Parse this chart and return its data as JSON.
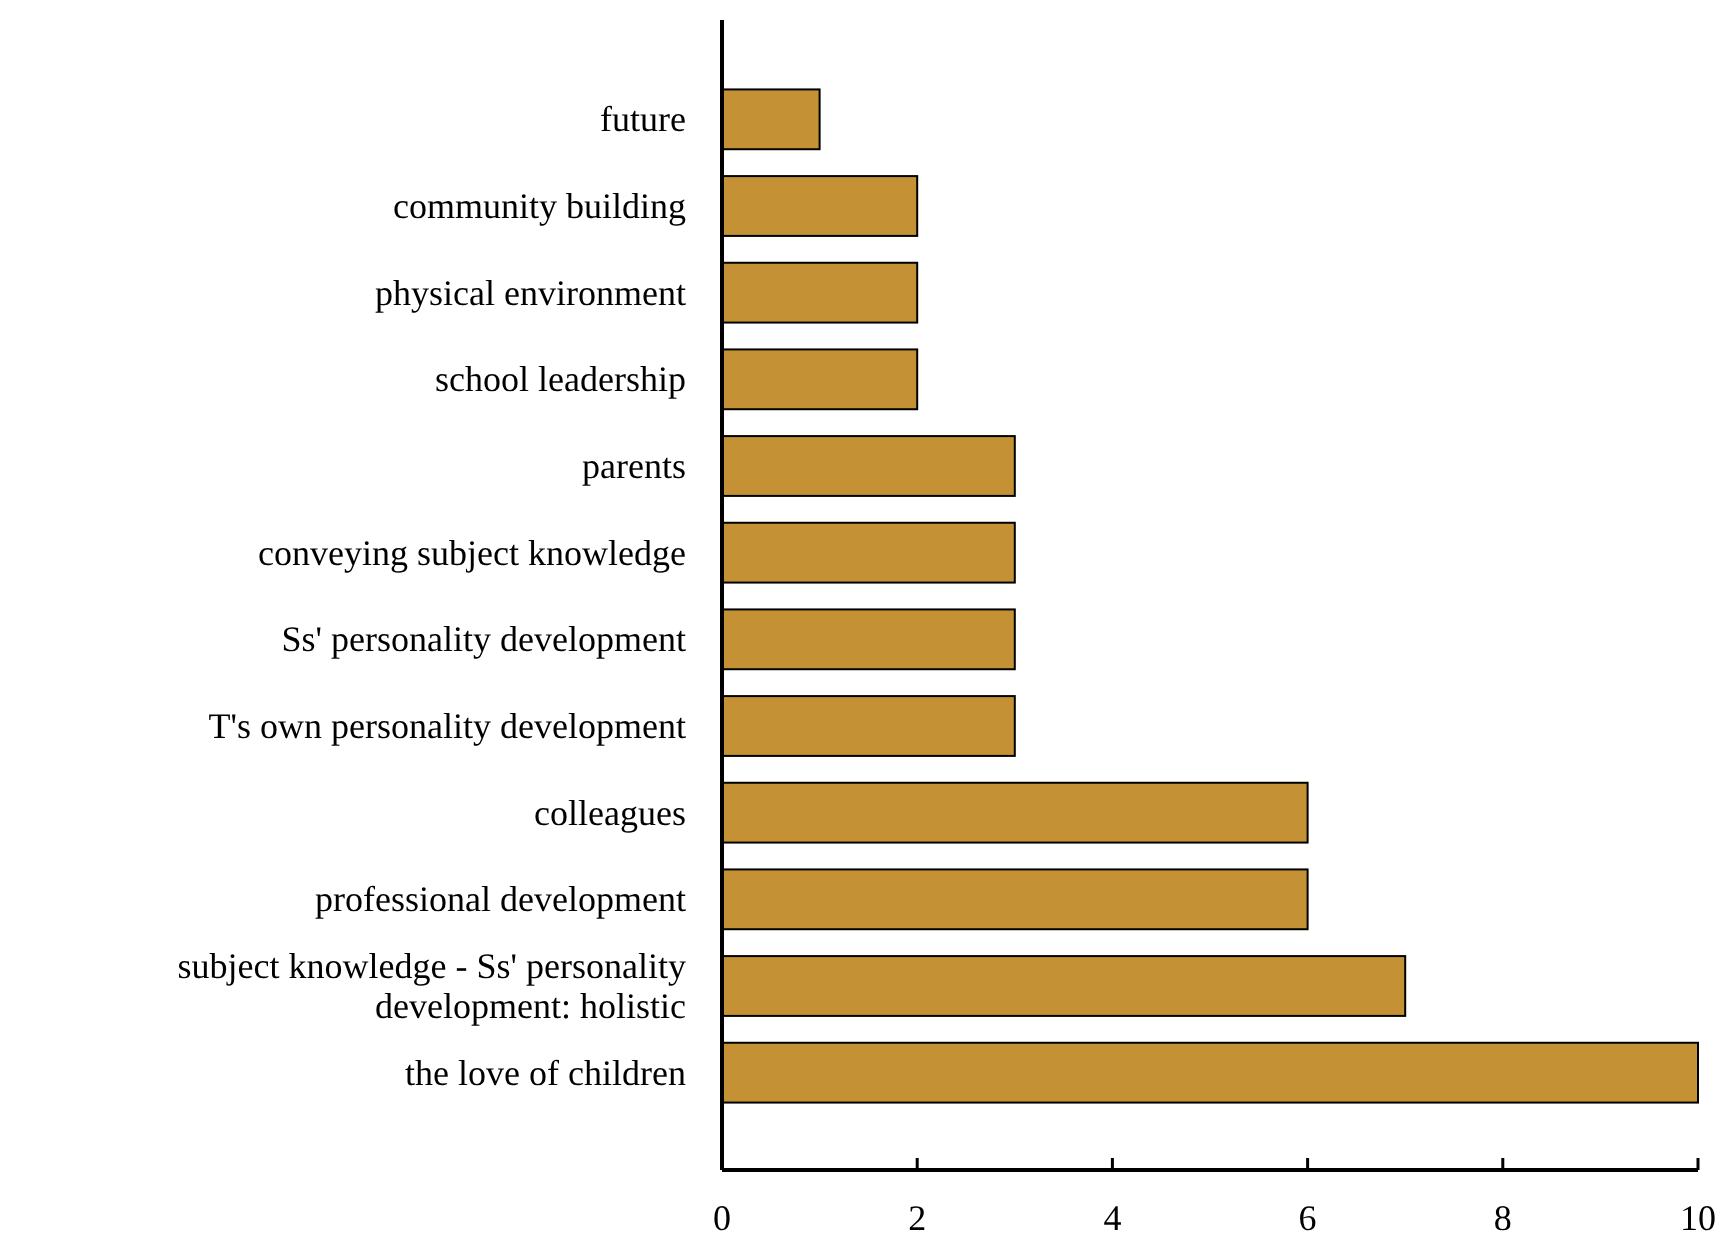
{
  "chart_data": {
    "type": "bar",
    "orientation": "horizontal",
    "categories": [
      "future",
      "community building",
      "physical environment",
      "school leadership",
      "parents",
      "conveying subject knowledge",
      "Ss' personality development",
      "T's own personality development",
      "colleagues",
      "professional development",
      "subject knowledge - Ss' personality development: holistic",
      "the love of children"
    ],
    "values": [
      1,
      2,
      2,
      2,
      3,
      3,
      3,
      3,
      6,
      6,
      7,
      10
    ],
    "color": "#c49235",
    "xlim": [
      0,
      10
    ],
    "xticks": [
      0,
      2,
      4,
      6,
      8,
      10
    ],
    "grid": false
  }
}
